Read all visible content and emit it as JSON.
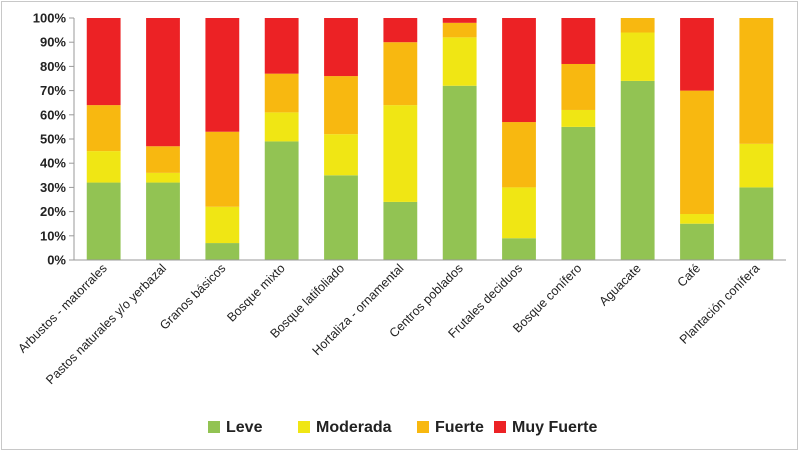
{
  "chart_data": {
    "type": "bar",
    "stacked": true,
    "percent": true,
    "categories": [
      "Arbustos - matorrales",
      "Pastos naturales y/o yerbazal",
      "Granos básicos",
      "Bosque mixto",
      "Bosque latifoliado",
      "Hortaliza - ornamental",
      "Centros poblados",
      "Frutales deciduos",
      "Bosque conífero",
      "Aguacate",
      "Café",
      "Plantación conífera"
    ],
    "series": [
      {
        "name": "Leve",
        "color": "#92c353",
        "values": [
          32,
          32,
          7,
          49,
          35,
          24,
          72,
          9,
          55,
          74,
          15,
          30
        ]
      },
      {
        "name": "Moderada",
        "color": "#f0e614",
        "values": [
          13,
          4,
          15,
          12,
          17,
          40,
          20,
          21,
          7,
          20,
          4,
          18
        ]
      },
      {
        "name": "Fuerte",
        "color": "#f8b810",
        "values": [
          19,
          11,
          31,
          16,
          24,
          26,
          6,
          27,
          19,
          6,
          51,
          52
        ]
      },
      {
        "name": "Muy Fuerte",
        "color": "#ec2225",
        "values": [
          36,
          53,
          47,
          23,
          24,
          10,
          2,
          43,
          19,
          0,
          30,
          0
        ]
      }
    ],
    "ylim": [
      0,
      100
    ],
    "yticks": [
      "0%",
      "10%",
      "20%",
      "30%",
      "40%",
      "50%",
      "60%",
      "70%",
      "80%",
      "90%",
      "100%"
    ],
    "legend_position": "bottom",
    "grid": false
  }
}
